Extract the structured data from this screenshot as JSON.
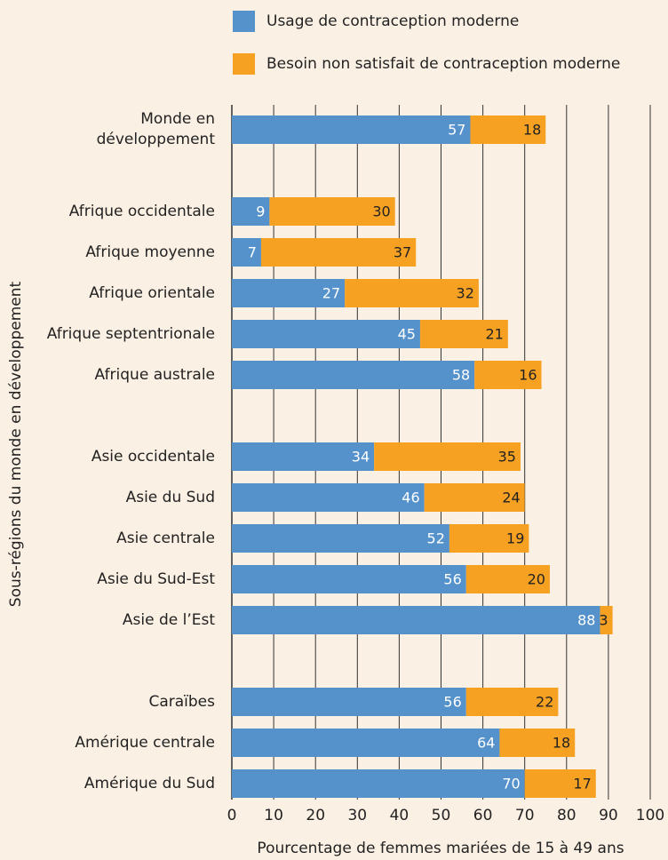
{
  "chart_data": {
    "type": "stacked-barh",
    "categories": [
      "Monde en\ndéveloppement",
      null,
      "Afrique occidentale",
      "Afrique moyenne",
      "Afrique orientale",
      "Afrique septentrionale",
      "Afrique australe",
      null,
      "Asie occidentale",
      "Asie du Sud",
      "Asie centrale",
      "Asie du Sud-Est",
      "Asie de l’Est",
      null,
      "Caraïbes",
      "Amérique centrale",
      "Amérique du Sud"
    ],
    "series": [
      {
        "name": "Usage de contraception moderne",
        "color": "#5592cb",
        "values": [
          57,
          null,
          9,
          7,
          27,
          45,
          58,
          null,
          34,
          46,
          52,
          56,
          88,
          null,
          56,
          64,
          70
        ]
      },
      {
        "name": "Besoin non satisfait de contraception moderne",
        "color": "#f7a122",
        "values": [
          18,
          null,
          30,
          37,
          32,
          21,
          16,
          null,
          35,
          24,
          19,
          20,
          3,
          null,
          22,
          18,
          17
        ]
      }
    ],
    "xlim": [
      0,
      100
    ],
    "xticks": [
      0,
      10,
      20,
      30,
      40,
      50,
      60,
      70,
      80,
      90,
      100
    ],
    "xlabel": "Pourcentage de femmes mariées de 15 à 49 ans",
    "ylabel": "Sous-régions du monde en développement",
    "grid": true
  }
}
